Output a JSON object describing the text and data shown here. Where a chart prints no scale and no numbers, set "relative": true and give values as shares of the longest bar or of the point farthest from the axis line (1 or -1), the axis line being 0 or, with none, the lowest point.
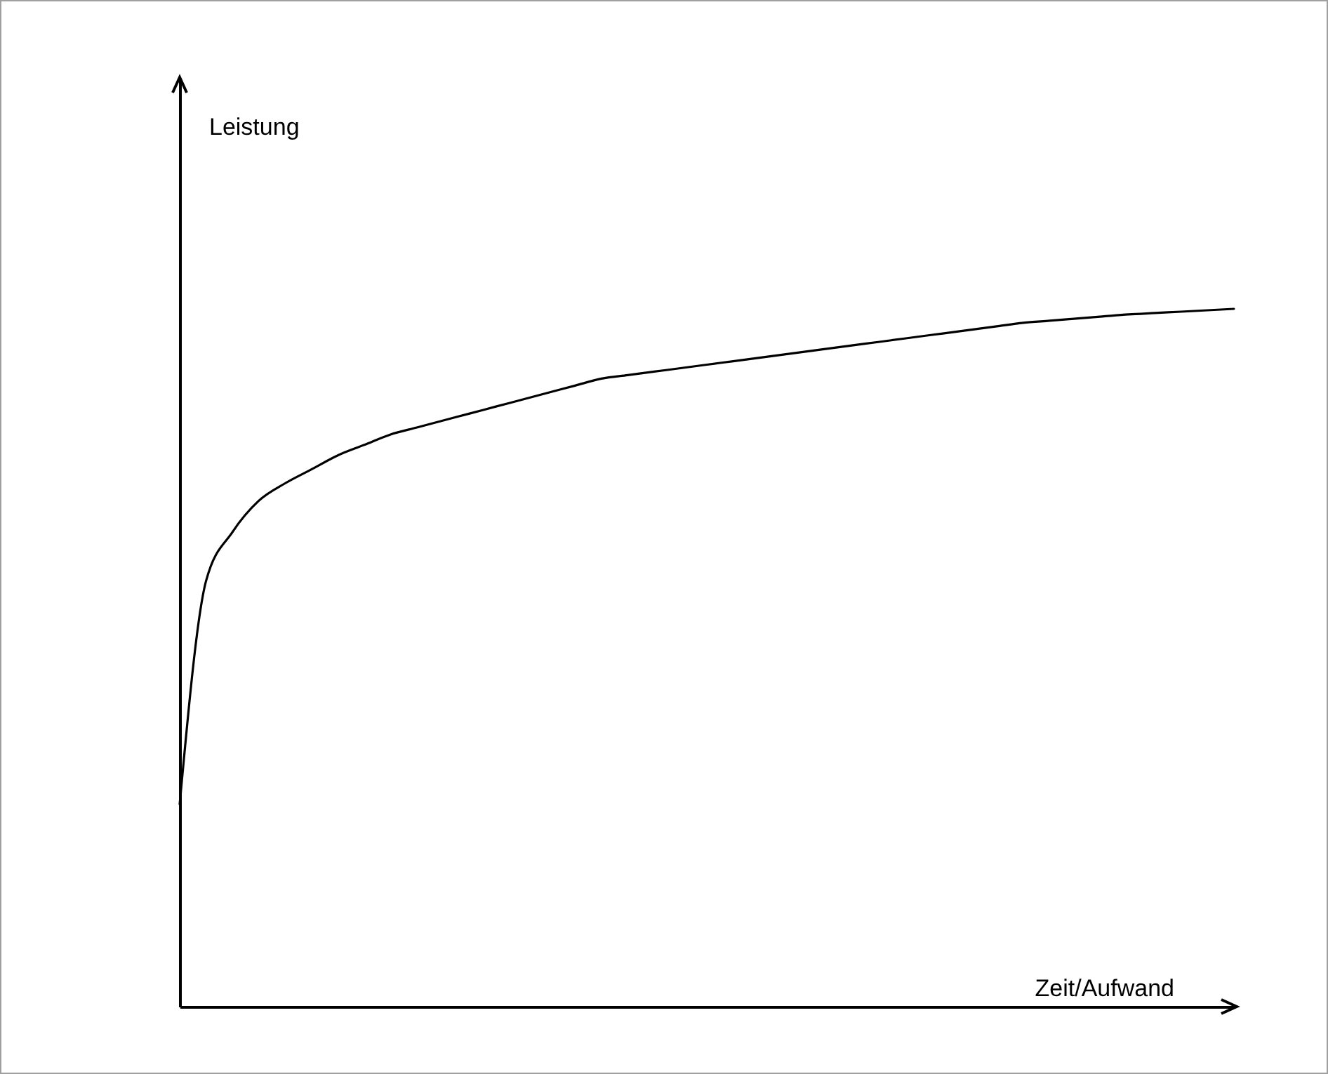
{
  "chart_data": {
    "type": "line",
    "xlabel": "Zeit/Aufwand",
    "annotations": [
      "Leistung"
    ],
    "relative": true,
    "marker": "none",
    "line_style": "solid",
    "categories": [
      null,
      null,
      null,
      null,
      null,
      null,
      null,
      null,
      null,
      null,
      null,
      null,
      null,
      null,
      null,
      null,
      null,
      null,
      null,
      null,
      null,
      null,
      null,
      null,
      null,
      null,
      null,
      null,
      null,
      null,
      null,
      null,
      null,
      null,
      null,
      null,
      null,
      null,
      null,
      null,
      null
    ],
    "series": [
      {
        "color": "#000000",
        "values": [
          0.29,
          0.61,
          0.68,
          0.725,
          0.75,
          0.77,
          0.79,
          0.805,
          0.82,
          0.83,
          0.84,
          0.85,
          0.86,
          0.87,
          0.88,
          0.89,
          0.9,
          0.905,
          0.91,
          0.915,
          0.92,
          0.925,
          0.93,
          0.935,
          0.94,
          0.945,
          0.95,
          0.955,
          0.96,
          0.965,
          0.97,
          0.975,
          0.98,
          0.983,
          0.986,
          0.989,
          0.992,
          0.994,
          0.996,
          0.998,
          1
        ]
      }
    ]
  }
}
